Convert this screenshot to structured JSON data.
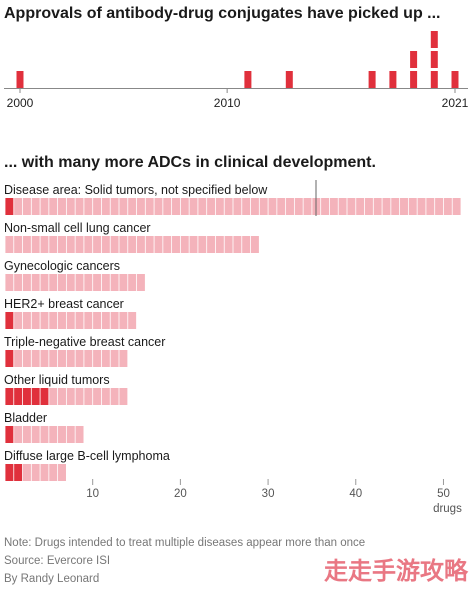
{
  "chart_data": [
    {
      "type": "bar",
      "title": "Approvals of antibody-drug conjugates have picked up ...",
      "x": [
        2000,
        2011,
        2013,
        2017,
        2018,
        2019,
        2020,
        2021
      ],
      "values": [
        1,
        1,
        1,
        1,
        1,
        2,
        3,
        1
      ],
      "xlim": [
        2000,
        2021
      ],
      "xticks": [
        "2000",
        "2010",
        "2021"
      ],
      "color": "#e0303c"
    },
    {
      "type": "bar",
      "title": "... with many more ADCs in clinical development.",
      "categories": [
        "Disease area: Solid tumors, not specified below",
        "Non-small cell lung cancer",
        "Gynecologic cancers",
        "HER2+ breast cancer",
        "Triple-negative breast cancer",
        "Other liquid tumors",
        "Bladder",
        "Diffuse large B-cell lymphoma"
      ],
      "series": [
        {
          "values": [
            52,
            29,
            16,
            15,
            14,
            14,
            9,
            7
          ]
        },
        {
          "values": [
            1,
            0,
            0,
            1,
            1,
            5,
            1,
            2
          ]
        }
      ],
      "xlim": [
        0,
        52
      ],
      "xticks": [
        "10",
        "20",
        "30",
        "40",
        "50"
      ],
      "xunit": "drugs",
      "colors": {
        "highlight": "#e0303c",
        "base": "#f4b3bb"
      }
    }
  ],
  "footer": {
    "note": "Note: Drugs intended to treat multiple diseases appear more than once",
    "source": "Source: Evercore ISI",
    "byline": "By Randy Leonard"
  },
  "watermark": "走走手游攻略"
}
